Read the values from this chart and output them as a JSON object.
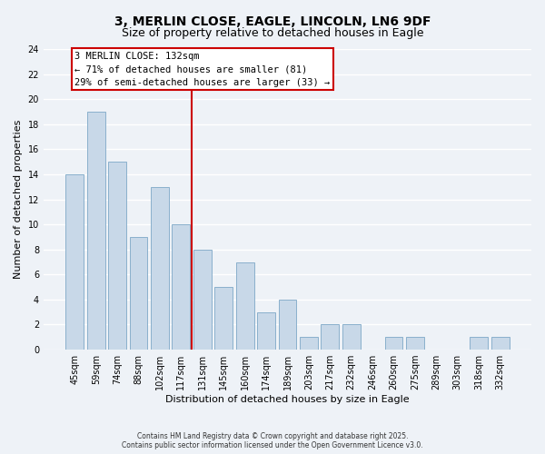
{
  "title": "3, MERLIN CLOSE, EAGLE, LINCOLN, LN6 9DF",
  "subtitle": "Size of property relative to detached houses in Eagle",
  "xlabel": "Distribution of detached houses by size in Eagle",
  "ylabel": "Number of detached properties",
  "bar_labels": [
    "45sqm",
    "59sqm",
    "74sqm",
    "88sqm",
    "102sqm",
    "117sqm",
    "131sqm",
    "145sqm",
    "160sqm",
    "174sqm",
    "189sqm",
    "203sqm",
    "217sqm",
    "232sqm",
    "246sqm",
    "260sqm",
    "275sqm",
    "289sqm",
    "303sqm",
    "318sqm",
    "332sqm"
  ],
  "bar_values": [
    14,
    19,
    15,
    9,
    13,
    10,
    8,
    5,
    7,
    3,
    4,
    1,
    2,
    2,
    0,
    1,
    1,
    0,
    0,
    1,
    1
  ],
  "bar_color": "#c8d8e8",
  "bar_edgecolor": "#8ab0cc",
  "vline_color": "#cc0000",
  "vline_index": 6,
  "annotation_title": "3 MERLIN CLOSE: 132sqm",
  "annotation_line1": "← 71% of detached houses are smaller (81)",
  "annotation_line2": "29% of semi-detached houses are larger (33) →",
  "annotation_box_facecolor": "#ffffff",
  "annotation_box_edgecolor": "#cc0000",
  "ylim": [
    0,
    24
  ],
  "yticks": [
    0,
    2,
    4,
    6,
    8,
    10,
    12,
    14,
    16,
    18,
    20,
    22,
    24
  ],
  "footer1": "Contains HM Land Registry data © Crown copyright and database right 2025.",
  "footer2": "Contains public sector information licensed under the Open Government Licence v3.0.",
  "bg_color": "#eef2f7",
  "plot_bg_color": "#eef2f7",
  "grid_color": "#ffffff",
  "title_fontsize": 10,
  "subtitle_fontsize": 9,
  "ylabel_fontsize": 8,
  "xlabel_fontsize": 8,
  "tick_fontsize": 7,
  "annot_fontsize": 7.5
}
